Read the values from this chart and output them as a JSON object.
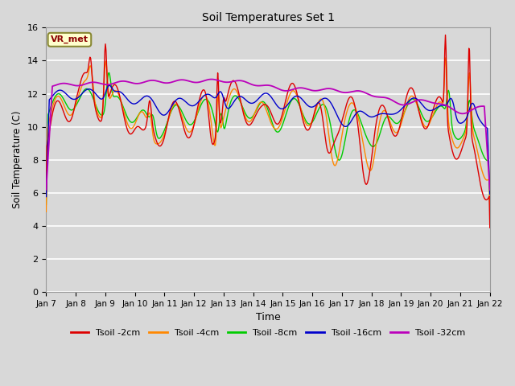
{
  "title": "Soil Temperatures Set 1",
  "xlabel": "Time",
  "ylabel": "Soil Temperature (C)",
  "ylim": [
    0,
    16
  ],
  "yticks": [
    0,
    2,
    4,
    6,
    8,
    10,
    12,
    14,
    16
  ],
  "xlim": [
    0,
    15
  ],
  "xtick_labels": [
    "Jan 7",
    "Jan 8",
    "Jan 9",
    "Jan 10",
    "Jan 11",
    "Jan 12",
    "Jan 13",
    "Jan 14",
    "Jan 15",
    "Jan 16",
    "Jan 17",
    "Jan 18",
    "Jan 19",
    "Jan 20",
    "Jan 21",
    "Jan 22"
  ],
  "colors": {
    "tsoil_2cm": "#dd0000",
    "tsoil_4cm": "#ff8800",
    "tsoil_8cm": "#00cc00",
    "tsoil_16cm": "#0000cc",
    "tsoil_32cm": "#bb00bb"
  },
  "legend_labels": [
    "Tsoil -2cm",
    "Tsoil -4cm",
    "Tsoil -8cm",
    "Tsoil -16cm",
    "Tsoil -32cm"
  ],
  "bg_color": "#d8d8d8",
  "grid_color": "#ffffff",
  "annotation_text": "VR_met",
  "annotation_bg": "#ffffcc",
  "annotation_border": "#888833"
}
